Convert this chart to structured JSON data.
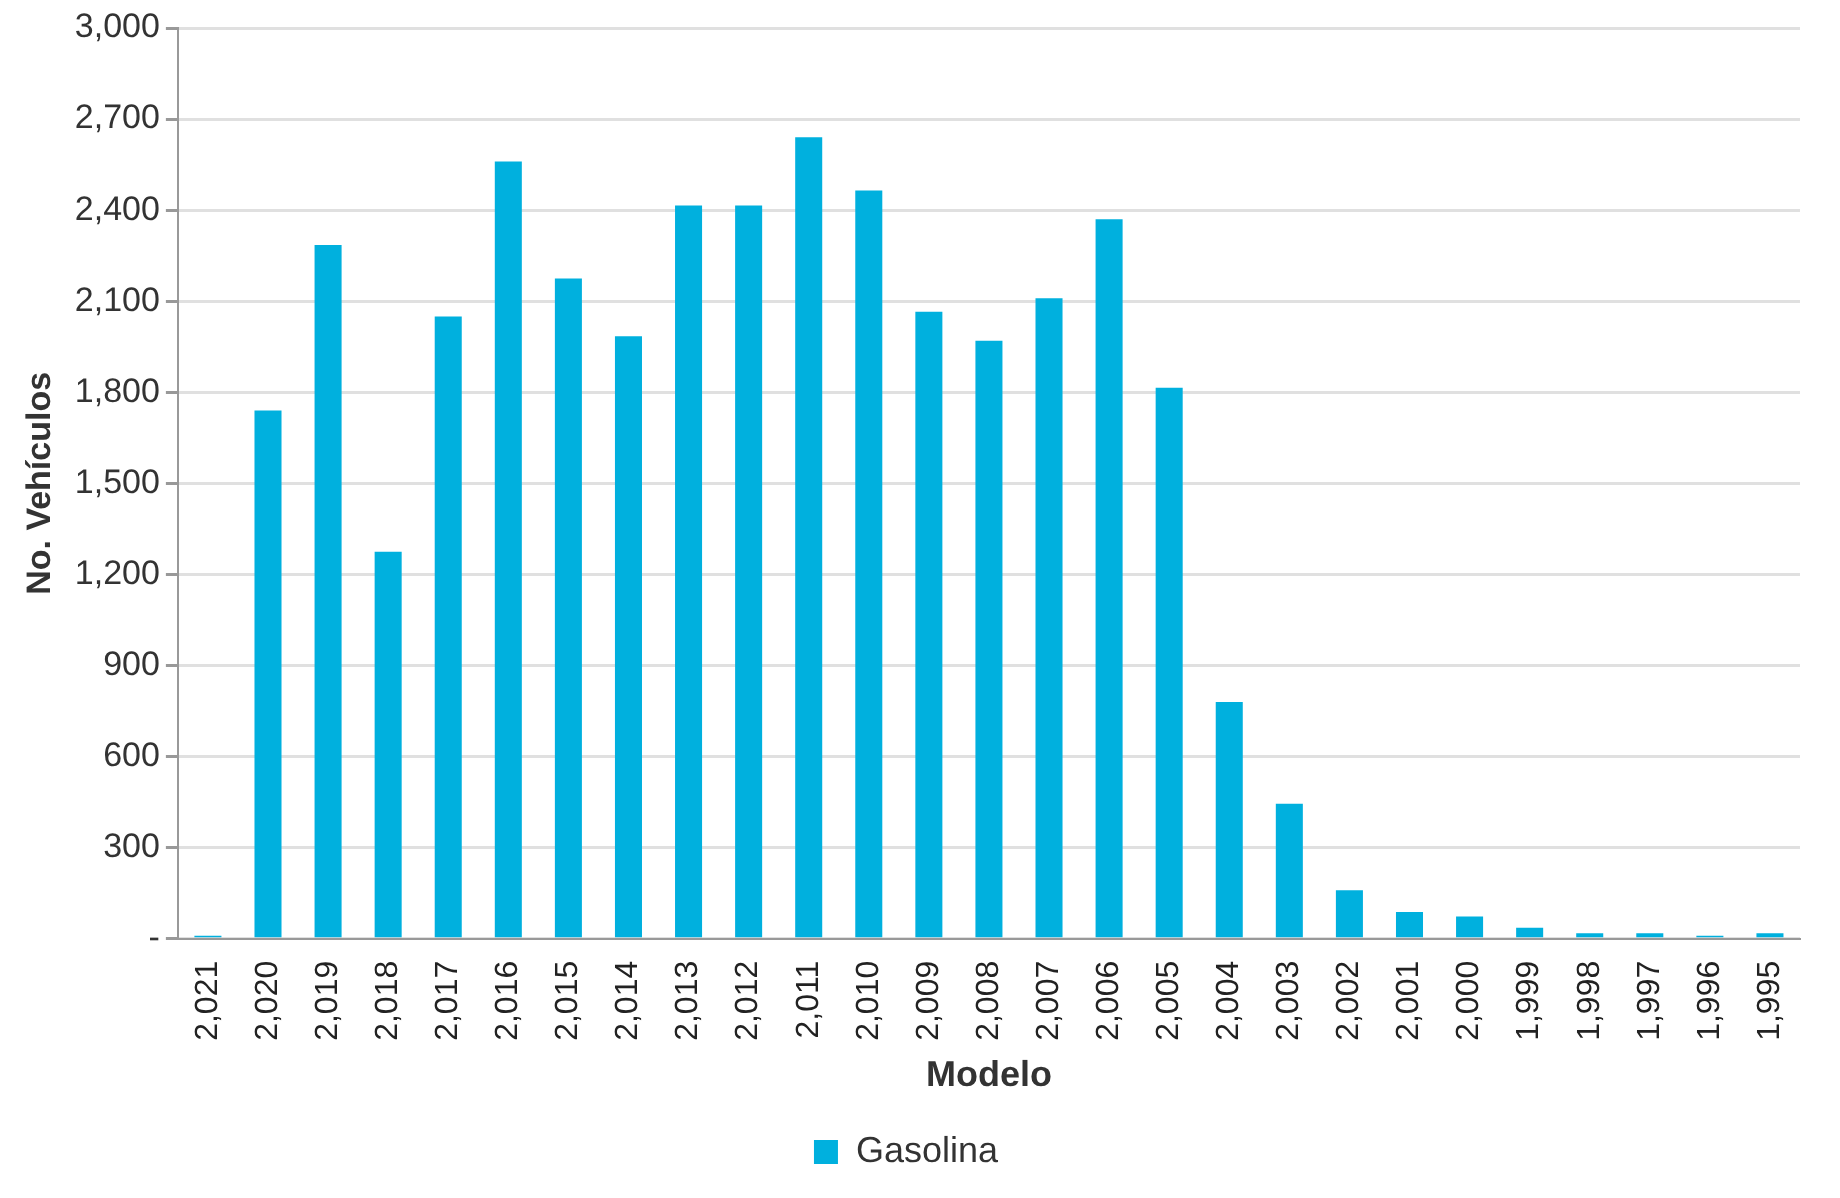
{
  "chart_data": {
    "type": "bar",
    "xlabel": "Modelo",
    "ylabel": "No. Vehículos",
    "categories": [
      "2,021",
      "2,020",
      "2,019",
      "2,018",
      "2,017",
      "2,016",
      "2,015",
      "2,014",
      "2,013",
      "2,012",
      "2,011",
      "2,010",
      "2,009",
      "2,008",
      "2,007",
      "2,006",
      "2,005",
      "2,004",
      "2,003",
      "2,002",
      "2,001",
      "2,000",
      "1,999",
      "1,998",
      "1,997",
      "1,996",
      "1,995"
    ],
    "series": [
      {
        "name": "Gasolina",
        "color": "#00b0de",
        "values": [
          10,
          1740,
          2285,
          1275,
          2050,
          2560,
          2175,
          1985,
          2415,
          2415,
          2640,
          2465,
          2065,
          1970,
          2110,
          2370,
          1815,
          780,
          445,
          160,
          88,
          73,
          36,
          18,
          18,
          10,
          18
        ]
      }
    ],
    "ylim": [
      0,
      3000
    ],
    "yticks": [
      {
        "value": 0,
        "label": "-"
      },
      {
        "value": 300,
        "label": "300"
      },
      {
        "value": 600,
        "label": "600"
      },
      {
        "value": 900,
        "label": "900"
      },
      {
        "value": 1200,
        "label": "1,200"
      },
      {
        "value": 1500,
        "label": "1,500"
      },
      {
        "value": 1800,
        "label": "1,800"
      },
      {
        "value": 2100,
        "label": "2,100"
      },
      {
        "value": 2400,
        "label": "2,400"
      },
      {
        "value": 2700,
        "label": "2,700"
      },
      {
        "value": 3000,
        "label": "3,000"
      }
    ],
    "grid": "y",
    "legend": "bottom"
  }
}
